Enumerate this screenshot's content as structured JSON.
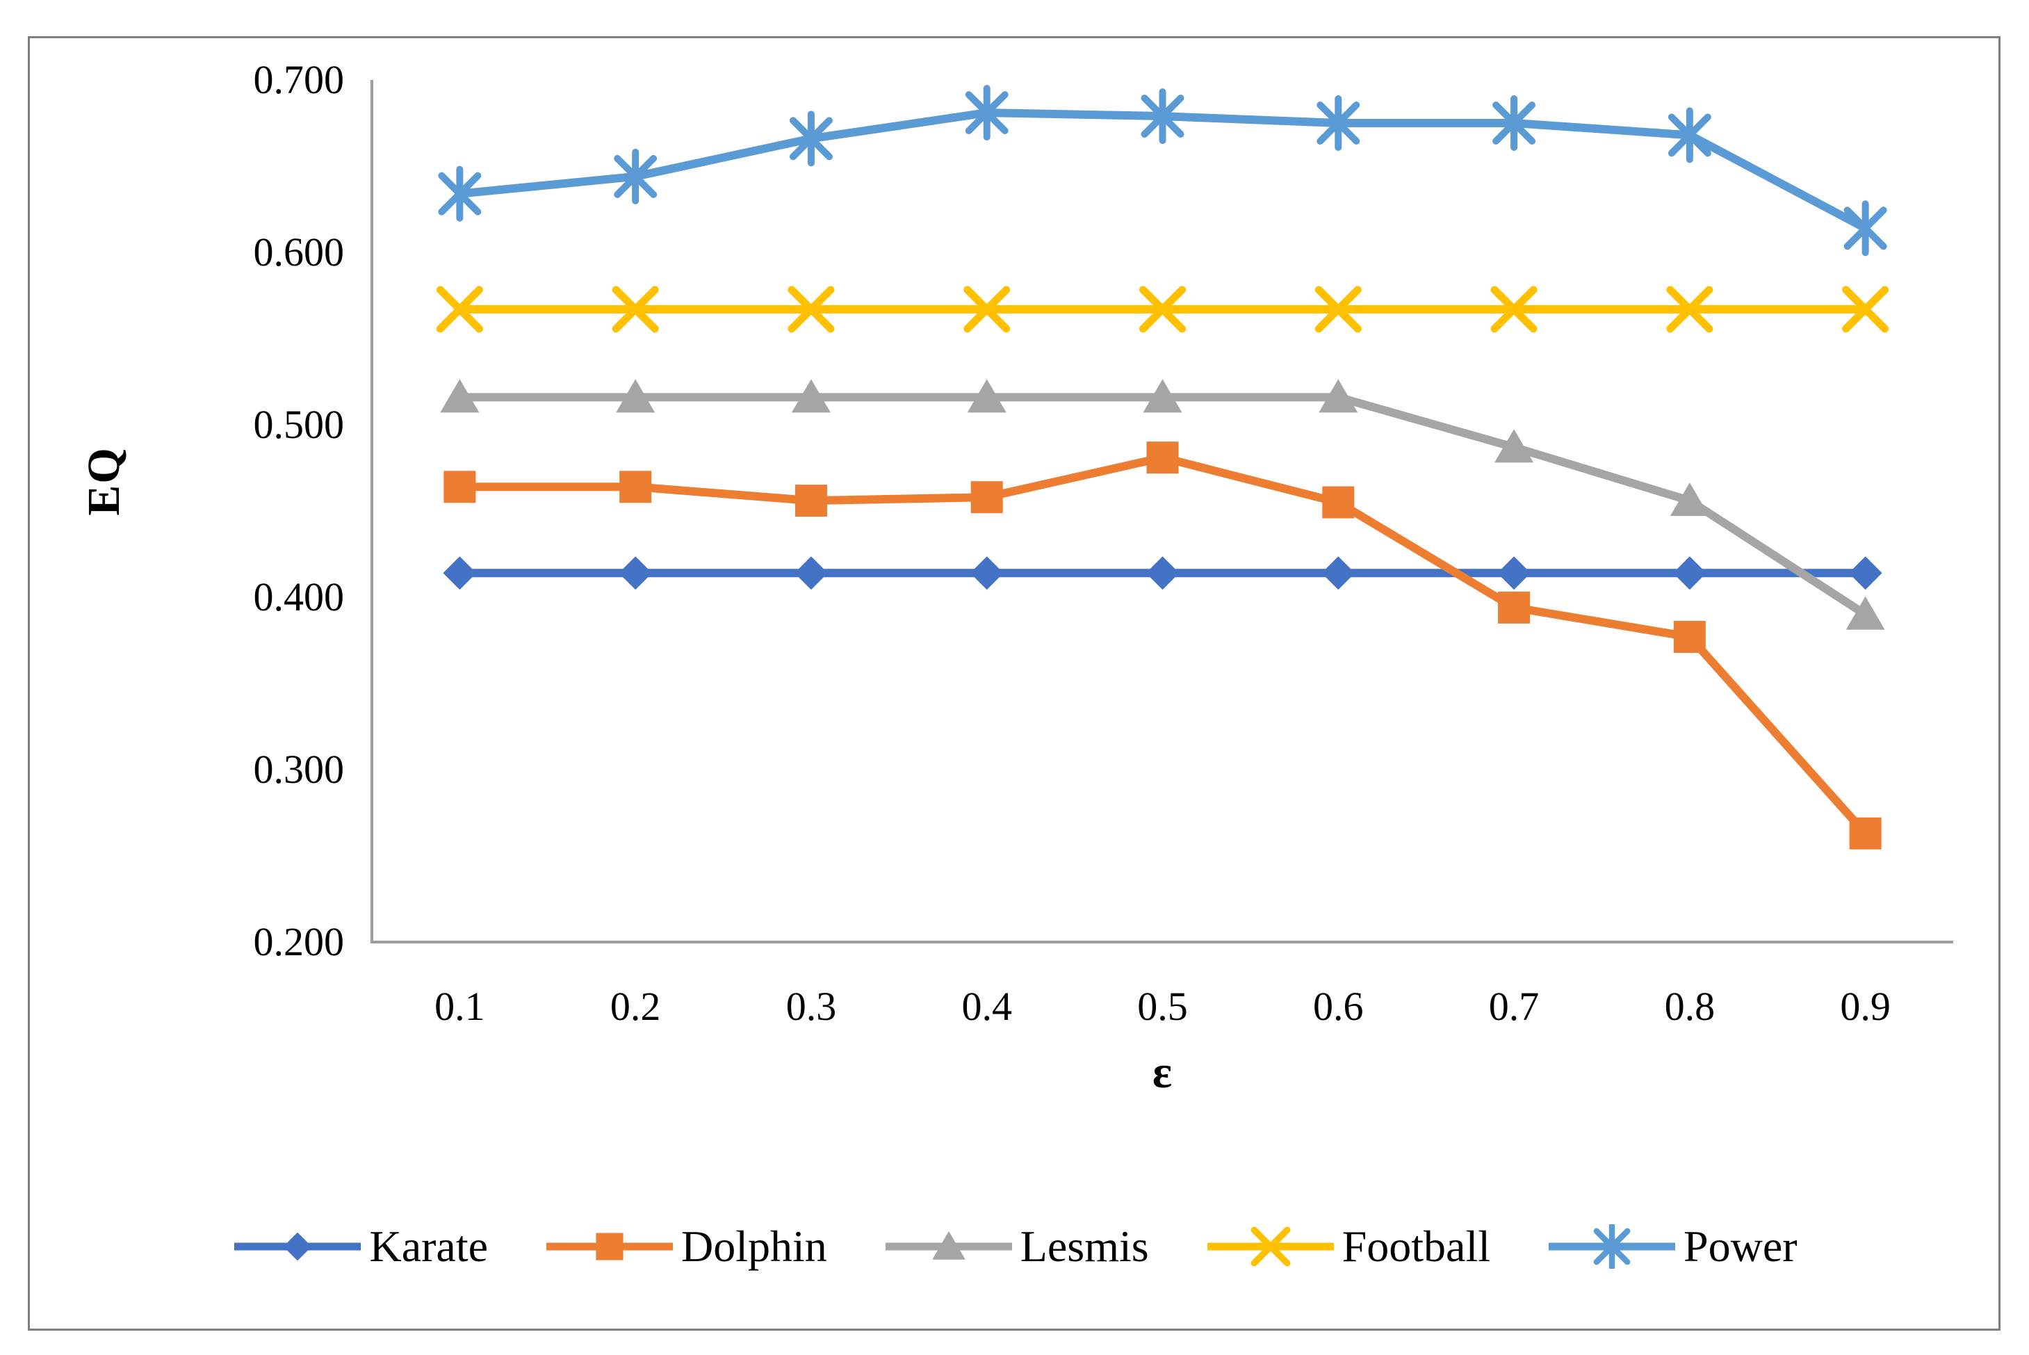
{
  "chart_data": {
    "type": "line",
    "title": "",
    "xlabel": "ε",
    "ylabel": "EQ",
    "categories": [
      "0.1",
      "0.2",
      "0.3",
      "0.4",
      "0.5",
      "0.6",
      "0.7",
      "0.8",
      "0.9"
    ],
    "y_ticks": [
      "0.700",
      "0.600",
      "0.500",
      "0.400",
      "0.300",
      "0.200"
    ],
    "ylim": [
      0.2,
      0.7
    ],
    "grid": false,
    "legend_position": "bottom",
    "axis_color": "#9d9d9d",
    "series": [
      {
        "name": "Karate",
        "color": "#4472C4",
        "marker": "diamond",
        "values": [
          0.414,
          0.414,
          0.414,
          0.414,
          0.414,
          0.414,
          0.414,
          0.414,
          0.414
        ]
      },
      {
        "name": "Dolphin",
        "color": "#ED7D31",
        "marker": "square",
        "values": [
          0.464,
          0.464,
          0.456,
          0.458,
          0.481,
          0.455,
          0.394,
          0.377,
          0.263
        ]
      },
      {
        "name": "Lesmis",
        "color": "#A5A5A5",
        "marker": "triangle",
        "values": [
          0.516,
          0.516,
          0.516,
          0.516,
          0.516,
          0.516,
          0.487,
          0.456,
          0.39
        ]
      },
      {
        "name": "Football",
        "color": "#FFC000",
        "marker": "x",
        "values": [
          0.567,
          0.567,
          0.567,
          0.567,
          0.567,
          0.567,
          0.567,
          0.567,
          0.567
        ]
      },
      {
        "name": "Power",
        "color": "#5B9BD5",
        "marker": "asterisk",
        "values": [
          0.634,
          0.644,
          0.666,
          0.681,
          0.679,
          0.675,
          0.675,
          0.668,
          0.614
        ]
      }
    ]
  }
}
